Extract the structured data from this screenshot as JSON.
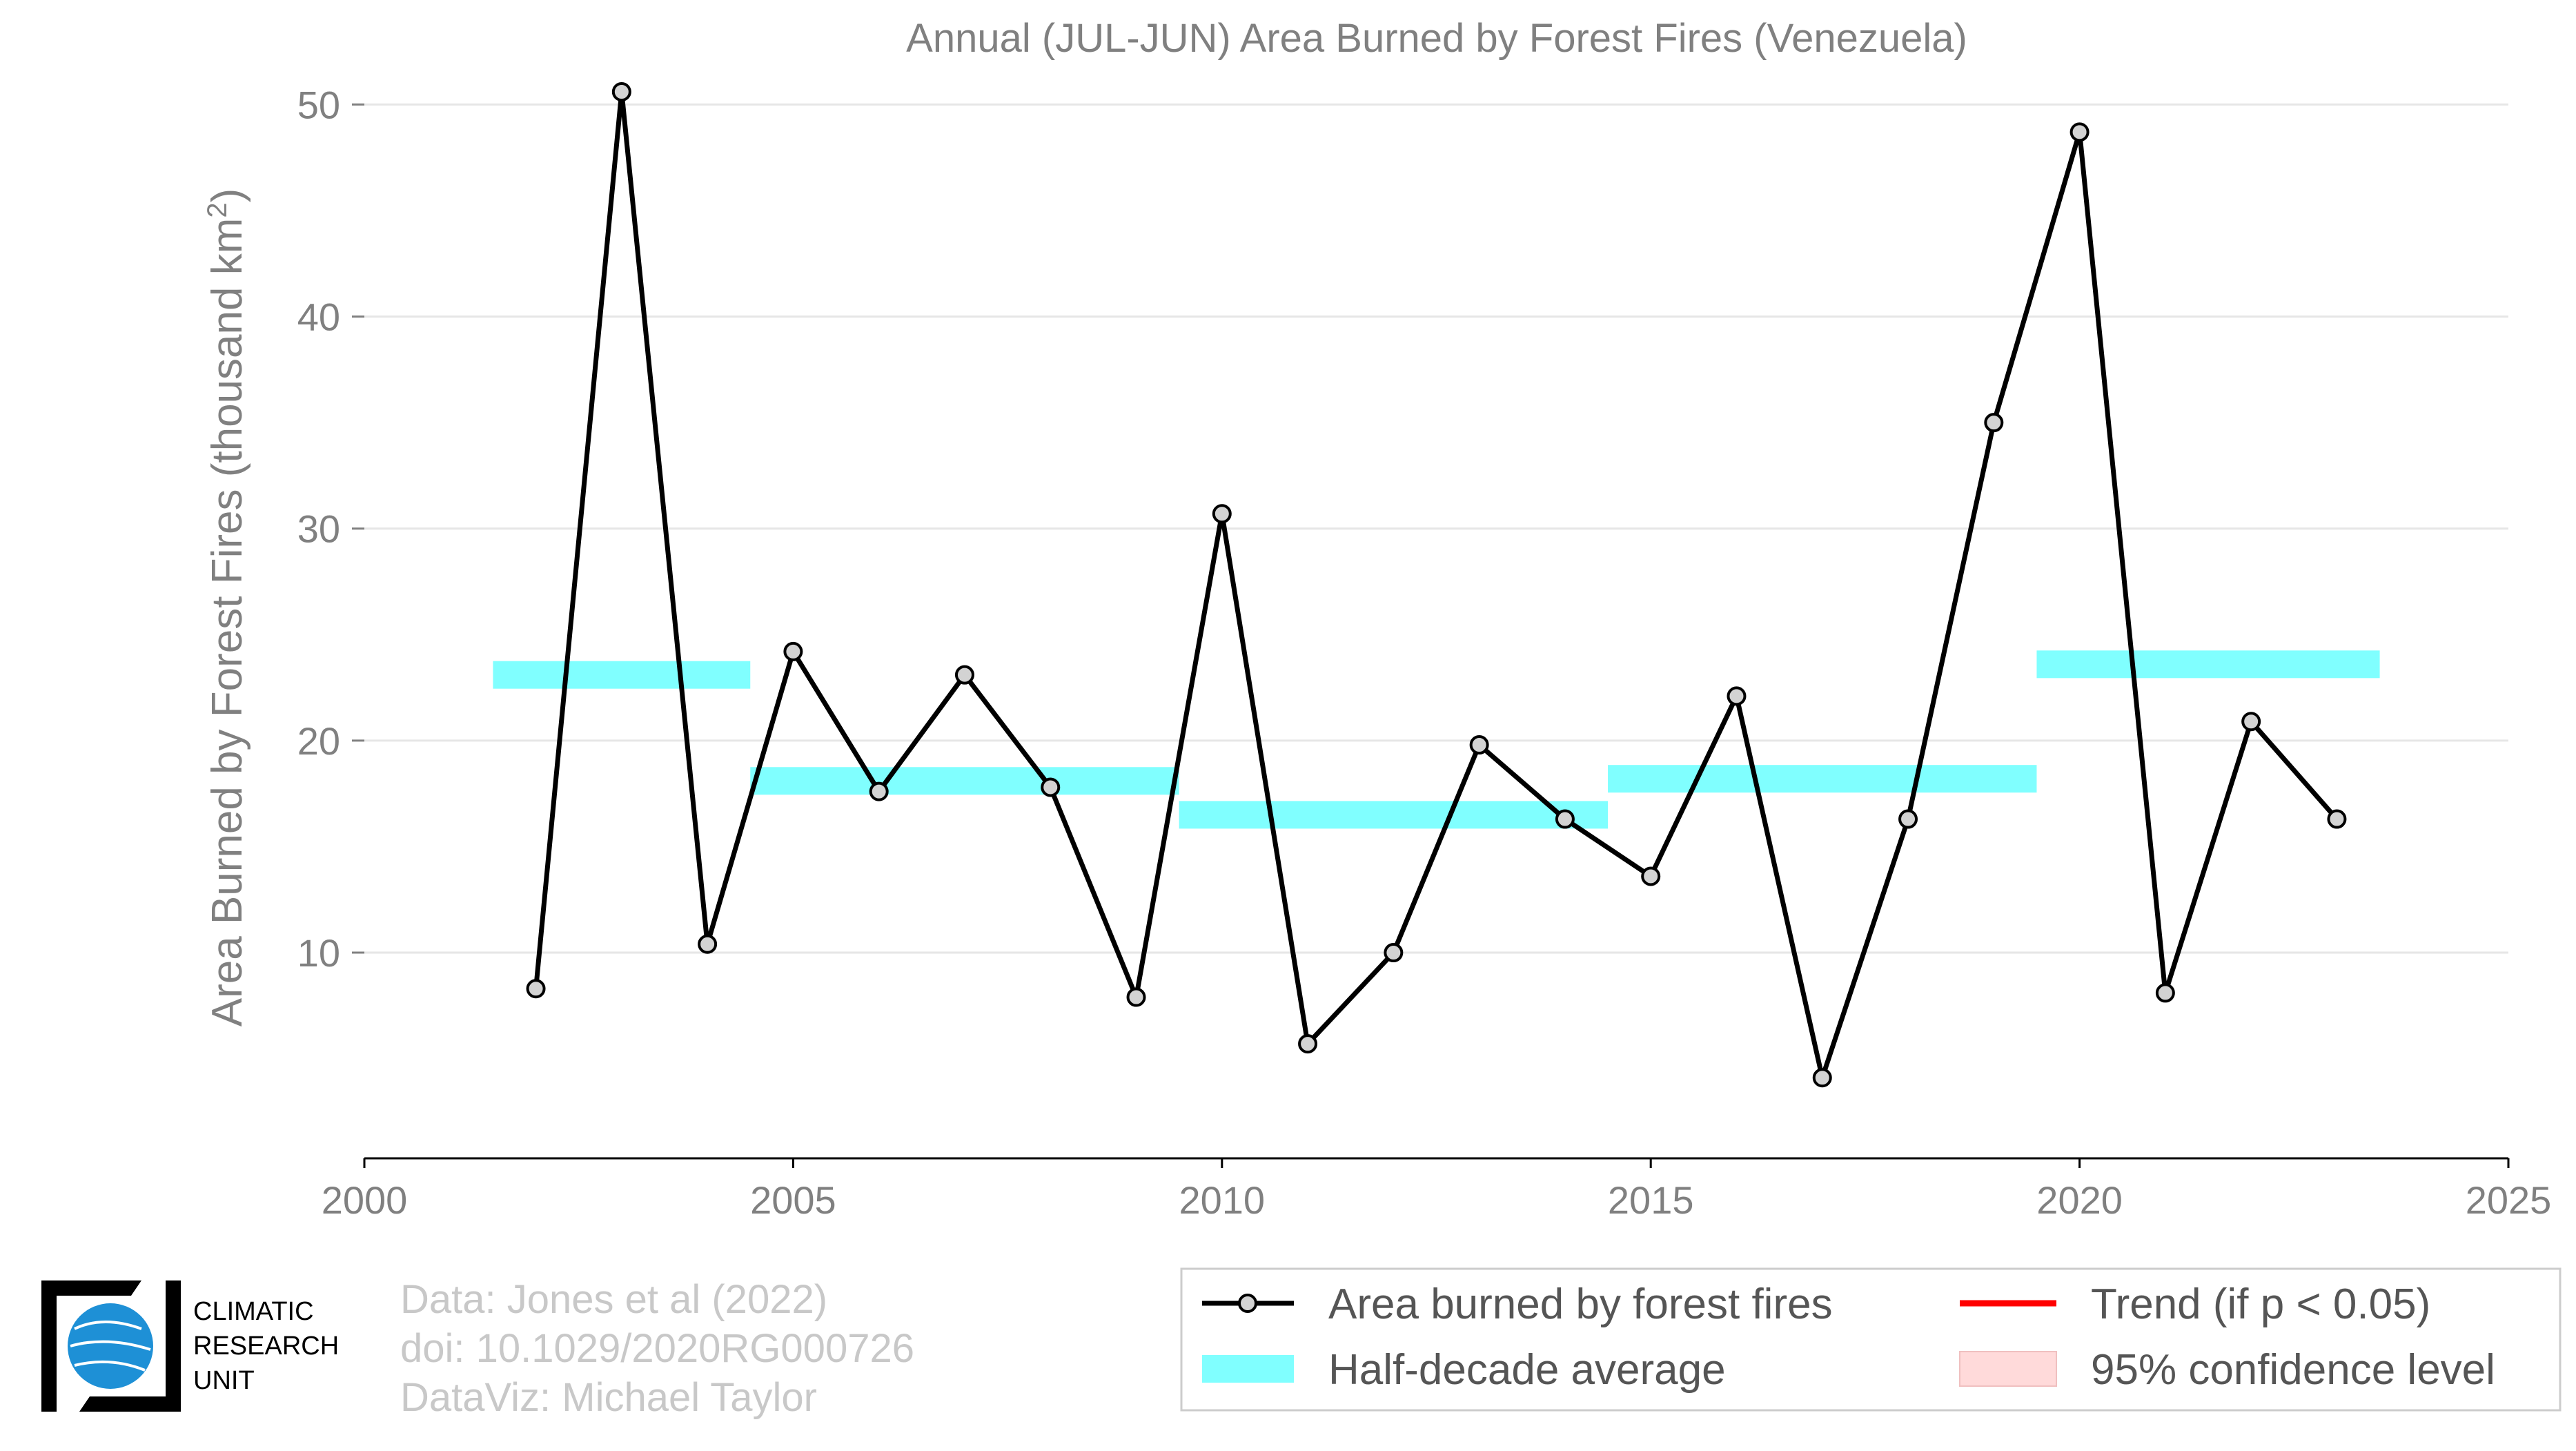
{
  "chart_data": {
    "type": "line",
    "title": "Annual (JUL-JUN) Area Burned by Forest Fires (Venezuela)",
    "xlabel": "",
    "ylabel": "Area Burned by Forest Fires (thousand km",
    "ylabel_sup": "2",
    "ylabel_end": ")",
    "xlim": [
      2000,
      2025
    ],
    "ylim": [
      0.3,
      52
    ],
    "x_ticks": [
      2000,
      2005,
      2010,
      2015,
      2020,
      2025
    ],
    "y_ticks": [
      10,
      20,
      30,
      40,
      50
    ],
    "grid": "horizontal",
    "legend_position": "bottom-right",
    "series": [
      {
        "name": "Area burned by forest fires",
        "color": "#000000",
        "marker_fill": "#d3d3d3",
        "x": [
          2002,
          2003,
          2004,
          2005,
          2006,
          2007,
          2008,
          2009,
          2010,
          2011,
          2012,
          2013,
          2014,
          2015,
          2016,
          2017,
          2018,
          2019,
          2020,
          2021,
          2022,
          2023
        ],
        "y": [
          8.3,
          50.6,
          10.4,
          24.2,
          17.6,
          23.1,
          17.8,
          7.9,
          30.7,
          5.7,
          10.0,
          19.8,
          16.3,
          13.6,
          22.1,
          4.1,
          16.3,
          35.0,
          48.7,
          8.1,
          20.9,
          16.3
        ]
      }
    ],
    "half_decade_average": {
      "name": "Half-decade average",
      "color": "#80ffff",
      "segments": [
        {
          "x_start": 2001.5,
          "x_end": 2004.5,
          "value": 23.1
        },
        {
          "x_start": 2004.5,
          "x_end": 2009.5,
          "value": 18.1
        },
        {
          "x_start": 2009.5,
          "x_end": 2014.5,
          "value": 16.5
        },
        {
          "x_start": 2014.5,
          "x_end": 2019.5,
          "value": 18.2
        },
        {
          "x_start": 2019.5,
          "x_end": 2023.5,
          "value": 23.6
        }
      ]
    },
    "trend": {
      "name": "Trend (if p < 0.05)",
      "color": "#ff0000"
    },
    "confidence": {
      "name": "95% confidence level",
      "color": "#ffdada"
    }
  },
  "credits": [
    "Data: Jones et al (2022)",
    "doi: 10.1029/2020RG000726",
    "DataViz: Michael Taylor"
  ],
  "logo": {
    "lines": [
      "CLIMATIC",
      "RESEARCH",
      "UNIT"
    ],
    "globe_color": "#1e90d6"
  }
}
